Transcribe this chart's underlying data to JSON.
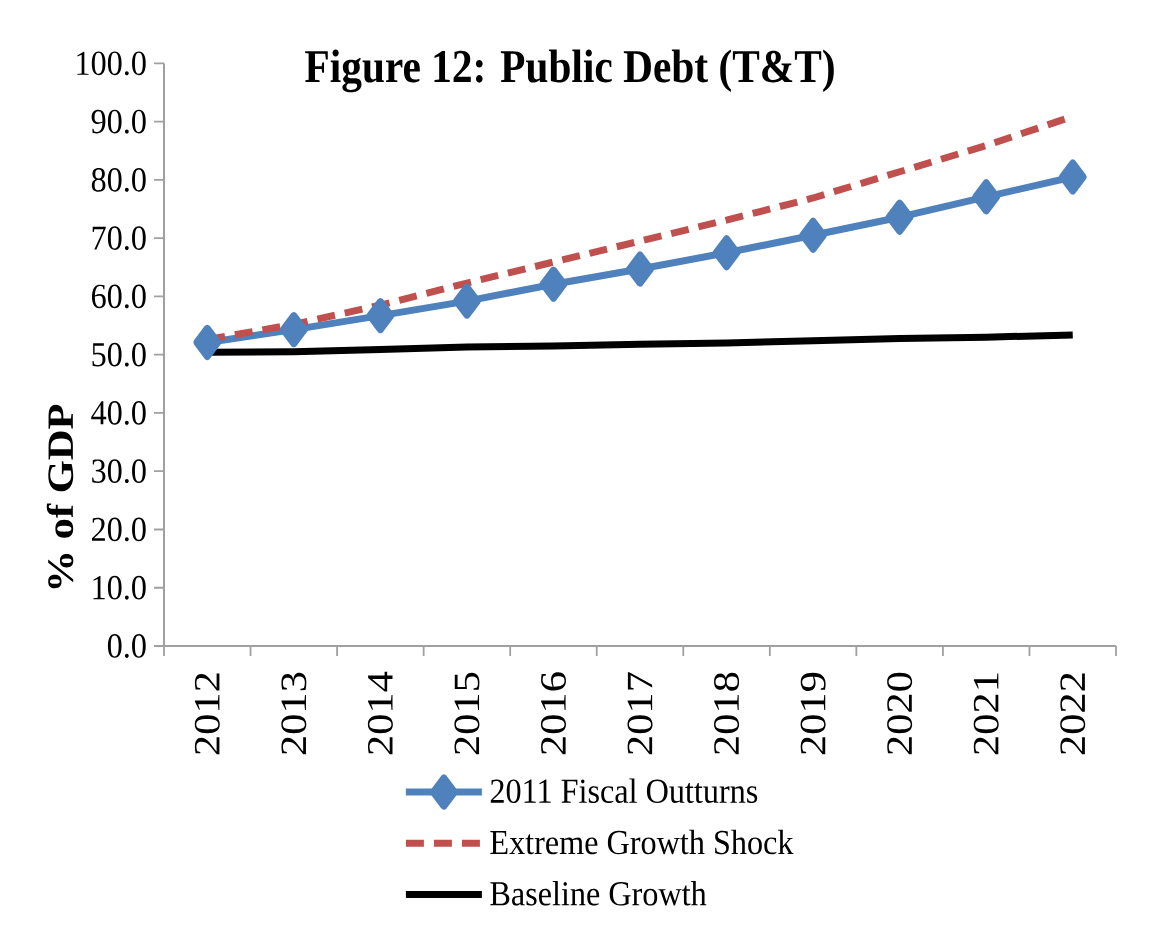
{
  "chart_data": {
    "type": "line",
    "title": "Figure 12: Public Debt (T&T)",
    "ylabel": "% of GDP",
    "categories": [
      "2012",
      "2013",
      "2014",
      "2015",
      "2016",
      "2017",
      "2018",
      "2019",
      "2020",
      "2021",
      "2022"
    ],
    "series": [
      {
        "name": "2011 Fiscal Outturns",
        "color": "#4f81bd",
        "marker": "diamond",
        "line_style": "solid",
        "values": [
          52.1,
          54.3,
          56.7,
          59.2,
          62.1,
          64.7,
          67.5,
          70.5,
          73.6,
          77.1,
          80.5
        ]
      },
      {
        "name": "Extreme Growth Shock",
        "color": "#c0504d",
        "marker": "none",
        "line_style": "dashed",
        "values": [
          52.6,
          55.2,
          58.5,
          62.3,
          65.9,
          69.5,
          73.1,
          76.9,
          81.4,
          85.9,
          90.9
        ]
      },
      {
        "name": "Baseline Growth",
        "color": "#000000",
        "marker": "none",
        "line_style": "solid",
        "values": [
          50.4,
          50.5,
          50.9,
          51.3,
          51.5,
          51.8,
          52.0,
          52.4,
          52.8,
          53.0,
          53.4
        ]
      }
    ],
    "ylim": [
      0,
      100
    ],
    "yticks": [
      {
        "value": 0,
        "label": "0.0"
      },
      {
        "value": 10,
        "label": "10.0"
      },
      {
        "value": 20,
        "label": "20.0"
      },
      {
        "value": 30,
        "label": "30.0"
      },
      {
        "value": 40,
        "label": "40.0"
      },
      {
        "value": 50,
        "label": "50.0"
      },
      {
        "value": 60,
        "label": "60.0"
      },
      {
        "value": 70,
        "label": "70.0"
      },
      {
        "value": 80,
        "label": "80.0"
      },
      {
        "value": 90,
        "label": "90.0"
      },
      {
        "value": 100,
        "label": "100.0"
      }
    ],
    "legend": "bottom"
  }
}
